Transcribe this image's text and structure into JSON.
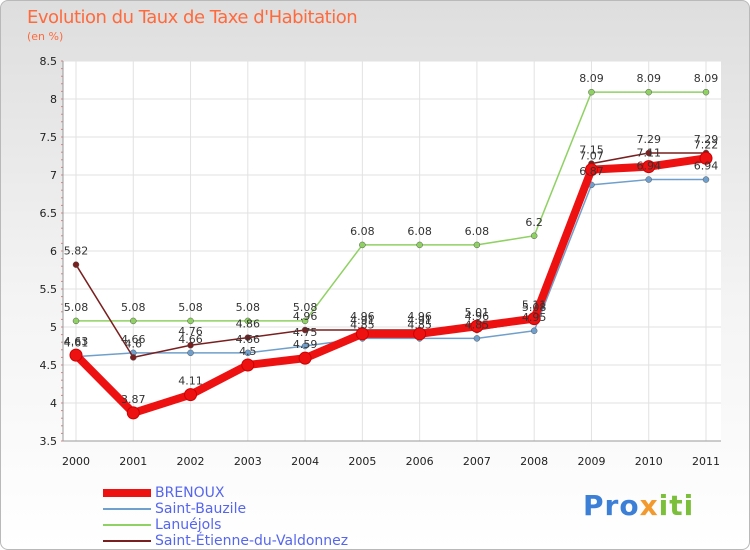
{
  "title": "Evolution du Taux de Taxe d'Habitation",
  "subtitle": "(en %)",
  "logo": {
    "part1": "Pro",
    "part2": "x",
    "part3": "iti"
  },
  "colors": {
    "title": "#ff6a3d",
    "legend_text": "#5566ee"
  },
  "chart_data": {
    "type": "line",
    "title": "Evolution du Taux de Taxe d'Habitation",
    "ylabel": "(en %)",
    "xlabel": "",
    "ylim": [
      3.5,
      8.5
    ],
    "yticks": [
      "3.5",
      "4",
      "4.5",
      "5",
      "5.5",
      "6",
      "6.5",
      "7",
      "7.5",
      "8",
      "8.5"
    ],
    "categories": [
      "2000",
      "2001",
      "2002",
      "2003",
      "2004",
      "2005",
      "2006",
      "2007",
      "2008",
      "2009",
      "2010",
      "2011"
    ],
    "legend_position": "bottom-left",
    "series": [
      {
        "name": "BRENOUX",
        "color": "#ee1111",
        "emphasis": true,
        "values": [
          4.63,
          3.87,
          4.11,
          4.5,
          4.59,
          4.91,
          4.91,
          5.01,
          5.11,
          7.07,
          7.11,
          7.22
        ],
        "labels": [
          "4.63",
          "3.87",
          "4.11",
          "4.5",
          "4.59",
          "4.91",
          "4.91",
          "5.01",
          "5.11",
          "7.07",
          "7.11",
          "7.22"
        ]
      },
      {
        "name": "Saint-Bauzile",
        "color": "#6f9fcc",
        "emphasis": false,
        "values": [
          4.61,
          4.66,
          4.66,
          4.66,
          4.75,
          4.85,
          4.85,
          4.85,
          4.95,
          6.87,
          6.94,
          6.94
        ],
        "labels": [
          "4.61",
          "4.66",
          "4.66",
          "4.66",
          "4.75",
          "4.85",
          "4.85",
          "4.85",
          "4.95",
          "6.87",
          "6.94",
          "6.94"
        ]
      },
      {
        "name": "Lanuéjols",
        "color": "#8fd163",
        "emphasis": false,
        "values": [
          5.08,
          5.08,
          5.08,
          5.08,
          5.08,
          6.08,
          6.08,
          6.08,
          6.2,
          8.09,
          8.09,
          8.09
        ],
        "labels": [
          "5.08",
          "5.08",
          "5.08",
          "5.08",
          "5.08",
          "6.08",
          "6.08",
          "6.08",
          "6.2",
          "8.09",
          "8.09",
          "8.09"
        ]
      },
      {
        "name": "Saint-Étienne-du-Valdonnez",
        "color": "#7a1f1f",
        "emphasis": false,
        "values": [
          5.82,
          4.6,
          4.76,
          4.86,
          4.96,
          4.96,
          4.96,
          4.96,
          5.08,
          7.15,
          7.29,
          7.29
        ],
        "labels": [
          "5.82",
          "4.6",
          "4.76",
          "4.86",
          "4.96",
          "4.96",
          "4.96",
          "4.96",
          "5.08",
          "7.15",
          "7.29",
          "7.29"
        ]
      }
    ]
  }
}
